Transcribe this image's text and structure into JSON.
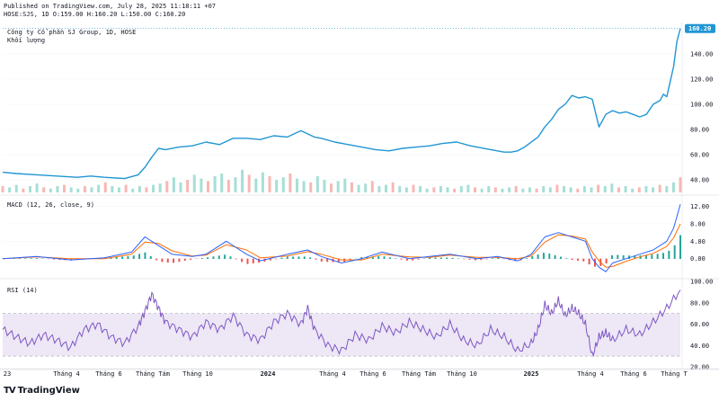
{
  "header": {
    "published": "Published on TradingView.com, July 28, 2025 11:18:11 +07",
    "ohlc": "HOSE:SJS, 1D O:159.00 H:160.20 L:150.00 C:160.20"
  },
  "brand": {
    "name": "TradingView",
    "logo": "TV"
  },
  "colors": {
    "price": "#2196d3",
    "price_label_bg": "#2196d3",
    "vol_up": "#a6dfd6",
    "vol_down": "#f7b8b4",
    "macd": "#2962ff",
    "signal": "#ff6d00",
    "hist_up": "#26a69a",
    "hist_down": "#ef5350",
    "rsi": "#7e57c2",
    "rsi_band": "#ede7f6",
    "grid": "#f0f3fa",
    "axis_text": "#131722"
  },
  "chart_data": [
    {
      "type": "line",
      "title": "Công ty Cổ phần SJ Group, 1D, HOSE",
      "subtitle": "Khối lượng",
      "ylim": [
        30,
        165
      ],
      "yticks": [
        "40.00",
        "60.00",
        "80.00",
        "100.00",
        "120.00",
        "140.00"
      ],
      "last_price_label": "160.20",
      "series": [
        {
          "x": [
            0,
            0.02,
            0.05,
            0.08,
            0.11,
            0.13,
            0.15,
            0.18,
            0.2,
            0.21,
            0.22,
            0.23,
            0.24,
            0.26,
            0.28,
            0.3,
            0.32,
            0.34,
            0.36,
            0.38,
            0.4,
            0.42,
            0.44,
            0.46,
            0.47,
            0.49,
            0.51,
            0.53,
            0.55,
            0.57,
            0.59,
            0.61,
            0.63,
            0.65,
            0.67,
            0.69,
            0.7,
            0.72,
            0.74,
            0.75,
            0.76,
            0.77,
            0.79,
            0.8,
            0.81,
            0.82,
            0.83,
            0.84,
            0.85,
            0.86,
            0.87,
            0.88,
            0.89,
            0.9,
            0.91,
            0.92,
            0.93,
            0.94,
            0.95,
            0.96,
            0.97,
            0.975,
            0.98,
            0.985,
            0.99,
            0.995,
            1.0
          ],
          "values": [
            46,
            45,
            44,
            43,
            42,
            43,
            42,
            41,
            44,
            50,
            58,
            65,
            64,
            66,
            67,
            70,
            68,
            73,
            73,
            72,
            75,
            74,
            79,
            74,
            73,
            70,
            68,
            66,
            64,
            63,
            65,
            66,
            67,
            69,
            70,
            67,
            66,
            64,
            62,
            62,
            63,
            66,
            74,
            82,
            88,
            96,
            100,
            107,
            105,
            106,
            104,
            82,
            92,
            95,
            93,
            94,
            92,
            90,
            92,
            100,
            103,
            108,
            106,
            118,
            130,
            150,
            160.2
          ]
        }
      ],
      "volume_values": [
        5,
        4,
        6,
        3,
        5,
        7,
        4,
        3,
        5,
        6,
        4,
        3,
        5,
        4,
        6,
        8,
        5,
        4,
        6,
        3,
        5,
        4,
        6,
        7,
        9,
        12,
        8,
        10,
        14,
        11,
        9,
        13,
        15,
        10,
        12,
        18,
        14,
        11,
        16,
        13,
        10,
        12,
        15,
        11,
        9,
        8,
        13,
        10,
        7,
        9,
        11,
        8,
        6,
        7,
        9,
        5,
        6,
        8,
        5,
        4,
        6,
        5,
        3,
        4,
        5,
        4,
        3,
        5,
        6,
        4,
        3,
        5,
        4,
        3,
        4,
        5,
        3,
        4,
        3,
        5,
        4,
        6,
        5,
        4,
        3,
        5,
        4,
        6,
        5,
        7,
        4,
        5,
        3,
        4,
        5,
        4,
        6,
        5,
        8,
        12
      ]
    },
    {
      "type": "line",
      "title": "MACD (12, 26, close, 9)",
      "ylim": [
        -4,
        14
      ],
      "yticks": [
        "0.00",
        "4.00",
        "8.00",
        "12.00"
      ],
      "series": [
        {
          "x": [
            0,
            0.05,
            0.1,
            0.15,
            0.19,
            0.21,
            0.23,
            0.25,
            0.28,
            0.3,
            0.33,
            0.36,
            0.38,
            0.42,
            0.45,
            0.47,
            0.5,
            0.53,
            0.56,
            0.6,
            0.63,
            0.66,
            0.7,
            0.73,
            0.76,
            0.78,
            0.8,
            0.82,
            0.84,
            0.86,
            0.87,
            0.88,
            0.89,
            0.9,
            0.92,
            0.94,
            0.96,
            0.98,
            0.99,
            1.0
          ],
          "values": [
            0,
            0.5,
            -0.3,
            0.2,
            1.5,
            5,
            3,
            1,
            0.5,
            1,
            4,
            1,
            -0.5,
            1,
            2,
            0.5,
            -1,
            0,
            1.5,
            0,
            0.5,
            1,
            0,
            0.5,
            -0.5,
            1,
            5,
            6,
            5,
            4,
            0,
            -2,
            -3,
            -1,
            0,
            1,
            2,
            4,
            7,
            12.5
          ]
        },
        {
          "x": [
            0,
            0.05,
            0.1,
            0.15,
            0.19,
            0.21,
            0.23,
            0.25,
            0.28,
            0.3,
            0.33,
            0.36,
            0.38,
            0.42,
            0.45,
            0.47,
            0.5,
            0.53,
            0.56,
            0.6,
            0.63,
            0.66,
            0.7,
            0.73,
            0.76,
            0.78,
            0.8,
            0.82,
            0.84,
            0.86,
            0.87,
            0.88,
            0.89,
            0.9,
            0.92,
            0.94,
            0.96,
            0.98,
            0.99,
            1.0
          ],
          "values": [
            0,
            0.4,
            0,
            0,
            1,
            3.8,
            3.5,
            1.8,
            0.6,
            0.8,
            3.2,
            2,
            0.2,
            0.6,
            1.6,
            1,
            -0.3,
            -0.3,
            1,
            0.4,
            0.3,
            0.8,
            0.3,
            0.3,
            0,
            0.6,
            3.8,
            5.5,
            5.2,
            4.5,
            1.5,
            -0.5,
            -2,
            -1.8,
            -0.6,
            0.4,
            1.2,
            2.8,
            4.8,
            8
          ]
        }
      ]
    },
    {
      "type": "line",
      "title": "RSI (14)",
      "ylim": [
        20,
        100
      ],
      "yticks": [
        "20.00",
        "40.00",
        "60.00",
        "80.00",
        "100.00"
      ],
      "bands": [
        30,
        70
      ],
      "series": [
        {
          "x": [
            0,
            0.02,
            0.04,
            0.06,
            0.08,
            0.1,
            0.12,
            0.14,
            0.16,
            0.18,
            0.2,
            0.21,
            0.22,
            0.23,
            0.24,
            0.26,
            0.28,
            0.3,
            0.32,
            0.34,
            0.36,
            0.38,
            0.4,
            0.42,
            0.44,
            0.45,
            0.46,
            0.48,
            0.5,
            0.52,
            0.54,
            0.56,
            0.58,
            0.6,
            0.62,
            0.64,
            0.66,
            0.68,
            0.7,
            0.72,
            0.74,
            0.76,
            0.78,
            0.79,
            0.8,
            0.81,
            0.82,
            0.83,
            0.84,
            0.85,
            0.86,
            0.87,
            0.88,
            0.89,
            0.9,
            0.92,
            0.94,
            0.96,
            0.98,
            1.0
          ],
          "values": [
            55,
            48,
            42,
            50,
            45,
            38,
            55,
            60,
            48,
            42,
            58,
            72,
            88,
            75,
            62,
            55,
            48,
            62,
            55,
            68,
            50,
            45,
            62,
            70,
            60,
            75,
            55,
            40,
            35,
            50,
            45,
            58,
            52,
            62,
            55,
            48,
            60,
            45,
            40,
            55,
            48,
            35,
            42,
            55,
            78,
            70,
            82,
            68,
            75,
            70,
            60,
            30,
            48,
            52,
            45,
            55,
            50,
            62,
            75,
            92
          ]
        }
      ]
    }
  ],
  "x_axis": {
    "labels": [
      "23",
      "Tháng 4",
      "Tháng 6",
      "Tháng Tám",
      "Tháng 10",
      "2024",
      "Tháng 4",
      "Tháng 6",
      "Tháng Tám",
      "Tháng 10",
      "2025",
      "Tháng 4",
      "Tháng 6",
      "Tháng T"
    ],
    "bold": [
      false,
      false,
      false,
      false,
      false,
      true,
      false,
      false,
      false,
      false,
      true,
      false,
      false,
      false
    ]
  }
}
